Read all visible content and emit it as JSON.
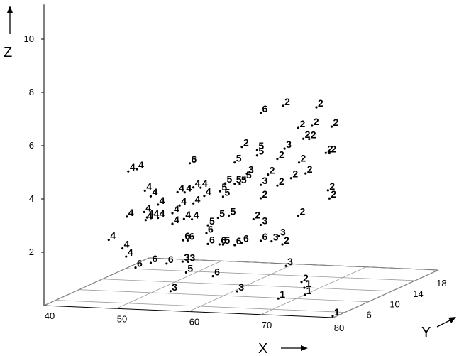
{
  "chart_data": {
    "type": "scatter3d",
    "x_label": "X",
    "y_label": "Y",
    "z_label": "Z",
    "xlim": [
      40,
      80
    ],
    "ylim": [
      4,
      22
    ],
    "zlim": [
      0,
      11.3
    ],
    "xticks": [
      40,
      50,
      60,
      70,
      80
    ],
    "yticks": [
      6,
      10,
      14,
      18,
      22
    ],
    "zticks": [
      2,
      4,
      6,
      8,
      10
    ],
    "grid": true,
    "color": "#000000",
    "x": [
      45.2,
      46.4,
      53.7,
      63.5,
      66.6,
      71.2,
      68.7,
      70.6,
      73.3,
      69.4,
      70.2,
      66.8,
      60.9,
      63.0,
      63.0,
      59.9,
      65.8,
      68.8,
      72.5,
      73.0,
      61.6,
      61.3,
      58.6,
      59.9,
      60.6,
      63.5,
      64.5,
      65.8,
      67.7,
      69.7,
      63.5,
      47.5,
      48.3,
      52.0,
      53.0,
      54.2,
      55.2,
      49.3,
      52.3,
      57.9,
      58.3,
      55.7,
      54.2,
      72.8,
      73.0,
      45.0,
      47.4,
      47.8,
      48.5,
      49.3,
      51.3,
      47.6,
      51.3,
      52.9,
      54.0,
      56.2,
      57.6,
      59.1,
      62.5,
      63.5,
      68.7,
      42.5,
      44.4,
      52.8,
      53.4,
      56.0,
      56.2,
      57.8,
      58.3,
      59.9,
      60.9,
      63.5,
      65.0,
      66.0,
      66.5,
      44.9,
      46.2,
      48.3,
      50.5,
      52.7,
      53.5,
      53.2,
      56.9,
      67.0,
      52,
      60.5,
      66,
      68,
      70,
      67.7,
      79.5
    ],
    "y": [
      12,
      12,
      12,
      12,
      12,
      12,
      12,
      12,
      12,
      12,
      12,
      12,
      12,
      12,
      12,
      12,
      12,
      12,
      12,
      12,
      12,
      12,
      12,
      12,
      12,
      12,
      12,
      12,
      12,
      12,
      12,
      12,
      12,
      12,
      12,
      12,
      12,
      12,
      12,
      12,
      12,
      12,
      12,
      12,
      12,
      12,
      12,
      12,
      12,
      12,
      12,
      12,
      12,
      12,
      12,
      12,
      12,
      12,
      12,
      12,
      12,
      12,
      12,
      12,
      12,
      12,
      12,
      12,
      12,
      12,
      12,
      12,
      12,
      12,
      12,
      12,
      12,
      12,
      12,
      12,
      12,
      12,
      12,
      12,
      10.8,
      11.7,
      15.9,
      13.9,
      11.5,
      9.8,
      4.5
    ],
    "z": [
      4.3,
      4.4,
      4.7,
      6.7,
      7.0,
      7.0,
      6.2,
      6.3,
      6.3,
      5.8,
      5.8,
      5.4,
      5.4,
      5.3,
      5.1,
      4.8,
      5.0,
      4.9,
      5.3,
      5.3,
      4.4,
      4.2,
      4.0,
      4.0,
      4.0,
      4.0,
      4.4,
      4.0,
      4.3,
      4.5,
      3.5,
      3.6,
      3.4,
      3.6,
      3.6,
      3.8,
      3.8,
      3.1,
      3.1,
      3.7,
      3.5,
      3.5,
      3.2,
      3.9,
      3.6,
      2.6,
      2.8,
      2.6,
      2.6,
      2.6,
      2.8,
      2.5,
      2.4,
      2.6,
      2.6,
      2.4,
      2.7,
      2.8,
      2.7,
      2.5,
      2.9,
      1.7,
      1.4,
      1.8,
      1.8,
      2.1,
      1.7,
      1.7,
      1.7,
      1.7,
      1.8,
      1.9,
      1.9,
      2.1,
      1.8,
      1.1,
      0.7,
      0.9,
      0.9,
      1.0,
      1.0,
      0.6,
      0.5,
      1.0,
      0,
      0,
      0,
      0,
      0,
      0,
      0
    ],
    "groups": [
      4,
      4,
      6,
      6,
      2,
      2,
      2,
      2,
      2,
      2,
      2,
      3,
      2,
      5,
      5,
      5,
      2,
      2,
      2,
      2,
      3,
      5,
      5,
      5,
      5,
      3,
      2,
      2,
      2,
      2,
      2,
      4,
      4,
      4,
      4,
      4,
      4,
      4,
      4,
      5,
      5,
      4,
      4,
      2,
      2,
      4,
      4,
      4,
      4,
      4,
      4,
      4,
      4,
      4,
      4,
      5,
      5,
      5,
      2,
      3,
      2,
      4,
      4,
      6,
      6,
      6,
      6,
      6,
      5,
      6,
      6,
      6,
      3,
      3,
      2,
      4,
      6,
      6,
      6,
      3,
      3,
      5,
      6,
      3,
      3,
      3,
      2,
      1,
      1,
      1,
      1
    ]
  }
}
